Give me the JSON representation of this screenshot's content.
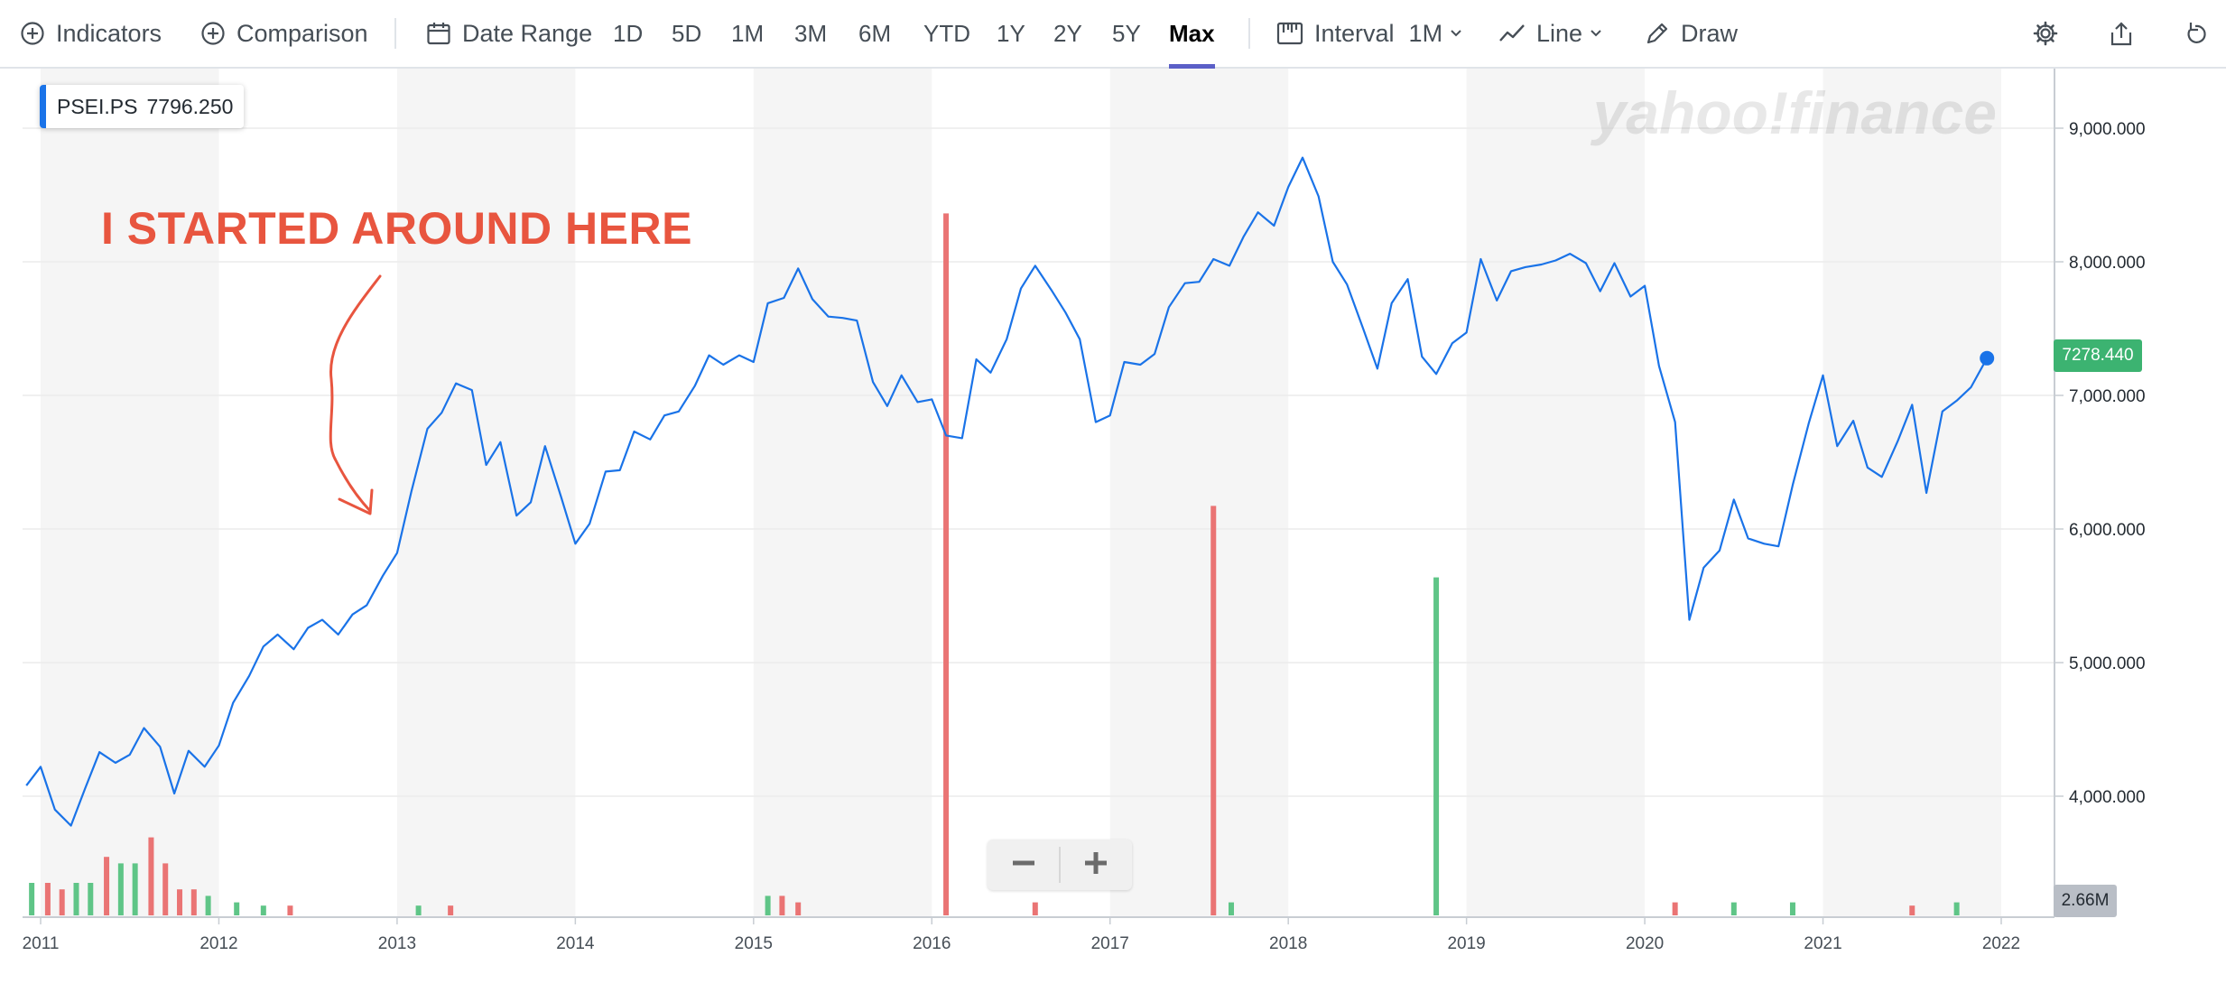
{
  "toolbar": {
    "indicators_label": "Indicators",
    "comparison_label": "Comparison",
    "date_range_label": "Date Range",
    "ranges": [
      "1D",
      "5D",
      "1M",
      "3M",
      "6M",
      "YTD",
      "1Y",
      "2Y",
      "5Y",
      "Max"
    ],
    "active_range": "Max",
    "interval_label": "Interval",
    "interval_value": "1M",
    "chart_type_label": "Line",
    "draw_label": "Draw",
    "icons": [
      "plus-circle-icon",
      "calendar-icon",
      "interval-icon",
      "line-chart-icon",
      "pencil-icon",
      "gear-icon",
      "share-icon",
      "reset-icon"
    ]
  },
  "legend": {
    "symbol": "PSEI.PS",
    "value": "7796.250",
    "color": "#1a73e8"
  },
  "watermark": "yahoo!finance",
  "annotation": {
    "text": "I STARTED AROUND HERE",
    "color": "#e8553f"
  },
  "badges": {
    "last_price": "7278.440",
    "volume": "2.66M"
  },
  "chart_data": {
    "type": "line",
    "series": [
      {
        "name": "PSEI.PS",
        "color": "#1a73e8",
        "points": [
          [
            "2010.92",
            4080
          ],
          [
            "2011.00",
            4220
          ],
          [
            "2011.08",
            3900
          ],
          [
            "2011.17",
            3780
          ],
          [
            "2011.25",
            4060
          ],
          [
            "2011.33",
            4330
          ],
          [
            "2011.42",
            4250
          ],
          [
            "2011.50",
            4310
          ],
          [
            "2011.58",
            4510
          ],
          [
            "2011.67",
            4370
          ],
          [
            "2011.75",
            4020
          ],
          [
            "2011.83",
            4340
          ],
          [
            "2011.92",
            4220
          ],
          [
            "2012.00",
            4380
          ],
          [
            "2012.08",
            4700
          ],
          [
            "2012.17",
            4900
          ],
          [
            "2012.25",
            5120
          ],
          [
            "2012.33",
            5210
          ],
          [
            "2012.42",
            5100
          ],
          [
            "2012.50",
            5260
          ],
          [
            "2012.58",
            5320
          ],
          [
            "2012.67",
            5210
          ],
          [
            "2012.75",
            5360
          ],
          [
            "2012.83",
            5430
          ],
          [
            "2012.92",
            5650
          ],
          [
            "2013.00",
            5820
          ],
          [
            "2013.08",
            6280
          ],
          [
            "2013.17",
            6750
          ],
          [
            "2013.25",
            6870
          ],
          [
            "2013.33",
            7090
          ],
          [
            "2013.42",
            7040
          ],
          [
            "2013.50",
            6480
          ],
          [
            "2013.58",
            6650
          ],
          [
            "2013.67",
            6100
          ],
          [
            "2013.75",
            6200
          ],
          [
            "2013.83",
            6620
          ],
          [
            "2013.92",
            6240
          ],
          [
            "2014.00",
            5890
          ],
          [
            "2014.08",
            6040
          ],
          [
            "2014.17",
            6430
          ],
          [
            "2014.25",
            6440
          ],
          [
            "2014.33",
            6730
          ],
          [
            "2014.42",
            6670
          ],
          [
            "2014.50",
            6850
          ],
          [
            "2014.58",
            6880
          ],
          [
            "2014.67",
            7070
          ],
          [
            "2014.75",
            7300
          ],
          [
            "2014.83",
            7230
          ],
          [
            "2014.92",
            7300
          ],
          [
            "2015.00",
            7250
          ],
          [
            "2015.08",
            7690
          ],
          [
            "2015.17",
            7730
          ],
          [
            "2015.25",
            7950
          ],
          [
            "2015.33",
            7720
          ],
          [
            "2015.42",
            7590
          ],
          [
            "2015.50",
            7580
          ],
          [
            "2015.58",
            7560
          ],
          [
            "2015.67",
            7100
          ],
          [
            "2015.75",
            6920
          ],
          [
            "2015.83",
            7150
          ],
          [
            "2015.92",
            6950
          ],
          [
            "2016.00",
            6970
          ],
          [
            "2016.08",
            6700
          ],
          [
            "2016.17",
            6680
          ],
          [
            "2016.25",
            7270
          ],
          [
            "2016.33",
            7170
          ],
          [
            "2016.42",
            7420
          ],
          [
            "2016.50",
            7800
          ],
          [
            "2016.58",
            7970
          ],
          [
            "2016.67",
            7790
          ],
          [
            "2016.75",
            7620
          ],
          [
            "2016.83",
            7420
          ],
          [
            "2016.92",
            6800
          ],
          [
            "2017.00",
            6850
          ],
          [
            "2017.08",
            7250
          ],
          [
            "2017.17",
            7230
          ],
          [
            "2017.25",
            7310
          ],
          [
            "2017.33",
            7660
          ],
          [
            "2017.42",
            7840
          ],
          [
            "2017.50",
            7850
          ],
          [
            "2017.58",
            8020
          ],
          [
            "2017.67",
            7970
          ],
          [
            "2017.75",
            8190
          ],
          [
            "2017.83",
            8370
          ],
          [
            "2017.92",
            8270
          ],
          [
            "2018.00",
            8560
          ],
          [
            "2018.08",
            8780
          ],
          [
            "2018.17",
            8490
          ],
          [
            "2018.25",
            8000
          ],
          [
            "2018.33",
            7830
          ],
          [
            "2018.42",
            7500
          ],
          [
            "2018.50",
            7200
          ],
          [
            "2018.58",
            7690
          ],
          [
            "2018.67",
            7870
          ],
          [
            "2018.75",
            7290
          ],
          [
            "2018.83",
            7160
          ],
          [
            "2018.92",
            7390
          ],
          [
            "2019.00",
            7470
          ],
          [
            "2019.08",
            8020
          ],
          [
            "2019.17",
            7710
          ],
          [
            "2019.25",
            7930
          ],
          [
            "2019.33",
            7960
          ],
          [
            "2019.42",
            7980
          ],
          [
            "2019.50",
            8010
          ],
          [
            "2019.58",
            8060
          ],
          [
            "2019.67",
            7990
          ],
          [
            "2019.75",
            7780
          ],
          [
            "2019.83",
            7990
          ],
          [
            "2019.92",
            7740
          ],
          [
            "2020.00",
            7820
          ],
          [
            "2020.08",
            7220
          ],
          [
            "2020.17",
            6800
          ],
          [
            "2020.25",
            5320
          ],
          [
            "2020.33",
            5710
          ],
          [
            "2020.42",
            5840
          ],
          [
            "2020.50",
            6220
          ],
          [
            "2020.58",
            5930
          ],
          [
            "2020.67",
            5890
          ],
          [
            "2020.75",
            5870
          ],
          [
            "2020.83",
            6330
          ],
          [
            "2020.92",
            6790
          ],
          [
            "2021.00",
            7150
          ],
          [
            "2021.08",
            6620
          ],
          [
            "2021.17",
            6810
          ],
          [
            "2021.25",
            6460
          ],
          [
            "2021.33",
            6390
          ],
          [
            "2021.42",
            6660
          ],
          [
            "2021.50",
            6930
          ],
          [
            "2021.58",
            6270
          ],
          [
            "2021.67",
            6880
          ],
          [
            "2021.75",
            6960
          ],
          [
            "2021.83",
            7060
          ],
          [
            "2021.92",
            7278.44
          ]
        ]
      }
    ],
    "volume": [
      {
        "x": 2010.95,
        "v": 0.05,
        "dir": "up"
      },
      {
        "x": 2011.04,
        "v": 0.05,
        "dir": "down"
      },
      {
        "x": 2011.12,
        "v": 0.04,
        "dir": "down"
      },
      {
        "x": 2011.2,
        "v": 0.05,
        "dir": "up"
      },
      {
        "x": 2011.28,
        "v": 0.05,
        "dir": "up"
      },
      {
        "x": 2011.37,
        "v": 0.09,
        "dir": "down"
      },
      {
        "x": 2011.45,
        "v": 0.08,
        "dir": "up"
      },
      {
        "x": 2011.53,
        "v": 0.08,
        "dir": "up"
      },
      {
        "x": 2011.62,
        "v": 0.12,
        "dir": "down"
      },
      {
        "x": 2011.7,
        "v": 0.08,
        "dir": "down"
      },
      {
        "x": 2011.78,
        "v": 0.04,
        "dir": "down"
      },
      {
        "x": 2011.86,
        "v": 0.04,
        "dir": "down"
      },
      {
        "x": 2011.94,
        "v": 0.03,
        "dir": "up"
      },
      {
        "x": 2012.1,
        "v": 0.02,
        "dir": "up"
      },
      {
        "x": 2012.25,
        "v": 0.015,
        "dir": "up"
      },
      {
        "x": 2012.4,
        "v": 0.015,
        "dir": "down"
      },
      {
        "x": 2013.12,
        "v": 0.015,
        "dir": "up"
      },
      {
        "x": 2013.3,
        "v": 0.015,
        "dir": "down"
      },
      {
        "x": 2015.08,
        "v": 0.03,
        "dir": "up"
      },
      {
        "x": 2015.16,
        "v": 0.03,
        "dir": "down"
      },
      {
        "x": 2015.25,
        "v": 0.02,
        "dir": "down"
      },
      {
        "x": 2016.08,
        "v": 1.08,
        "dir": "down"
      },
      {
        "x": 2016.58,
        "v": 0.02,
        "dir": "down"
      },
      {
        "x": 2017.58,
        "v": 0.63,
        "dir": "down"
      },
      {
        "x": 2017.68,
        "v": 0.02,
        "dir": "up"
      },
      {
        "x": 2018.83,
        "v": 0.52,
        "dir": "up"
      },
      {
        "x": 2020.17,
        "v": 0.02,
        "dir": "down"
      },
      {
        "x": 2020.5,
        "v": 0.02,
        "dir": "up"
      },
      {
        "x": 2020.83,
        "v": 0.02,
        "dir": "up"
      },
      {
        "x": 2021.5,
        "v": 0.015,
        "dir": "down"
      },
      {
        "x": 2021.75,
        "v": 0.02,
        "dir": "up"
      }
    ],
    "volume_colors": {
      "up": "#5fc587",
      "down": "#ea7474"
    },
    "x_ticks": [
      "2011",
      "2012",
      "2013",
      "2014",
      "2015",
      "2016",
      "2017",
      "2018",
      "2019",
      "2020",
      "2021",
      "2022"
    ],
    "y_ticks": [
      "4,000.000",
      "5,000.000",
      "6,000.000",
      "7,000.000",
      "8,000.000",
      "9,000.000"
    ],
    "y_tick_values": [
      4000,
      5000,
      6000,
      7000,
      8000,
      9000
    ],
    "xlim": [
      2010.92,
      2022.3
    ],
    "ylim": [
      3100,
      9500
    ],
    "alternating_year_bands": true,
    "grid": true,
    "y_axis_side": "right"
  }
}
